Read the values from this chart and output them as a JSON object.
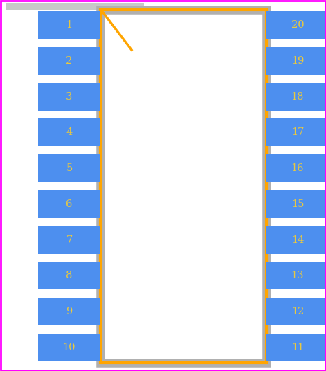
{
  "background_color": "#ffffff",
  "border_color": "#ff00ff",
  "body_border_color": "#ffa500",
  "body_fill_color": "#ffffff",
  "body_outline_color": "#b0b0b0",
  "pin_fill_color": "#4d8fef",
  "pin_text_color": "#e8c840",
  "pin_font_size": 10.5,
  "left_pins": [
    1,
    2,
    3,
    4,
    5,
    6,
    7,
    8,
    9,
    10
  ],
  "right_pins": [
    20,
    19,
    18,
    17,
    16,
    15,
    14,
    13,
    12,
    11
  ],
  "num_pins_per_side": 10,
  "fig_width": 4.71,
  "fig_height": 5.36,
  "dpi": 100,
  "notch_color": "#ffa500",
  "gray_bar_color": "#c8c8c8",
  "gray_bar_height": 0.016
}
